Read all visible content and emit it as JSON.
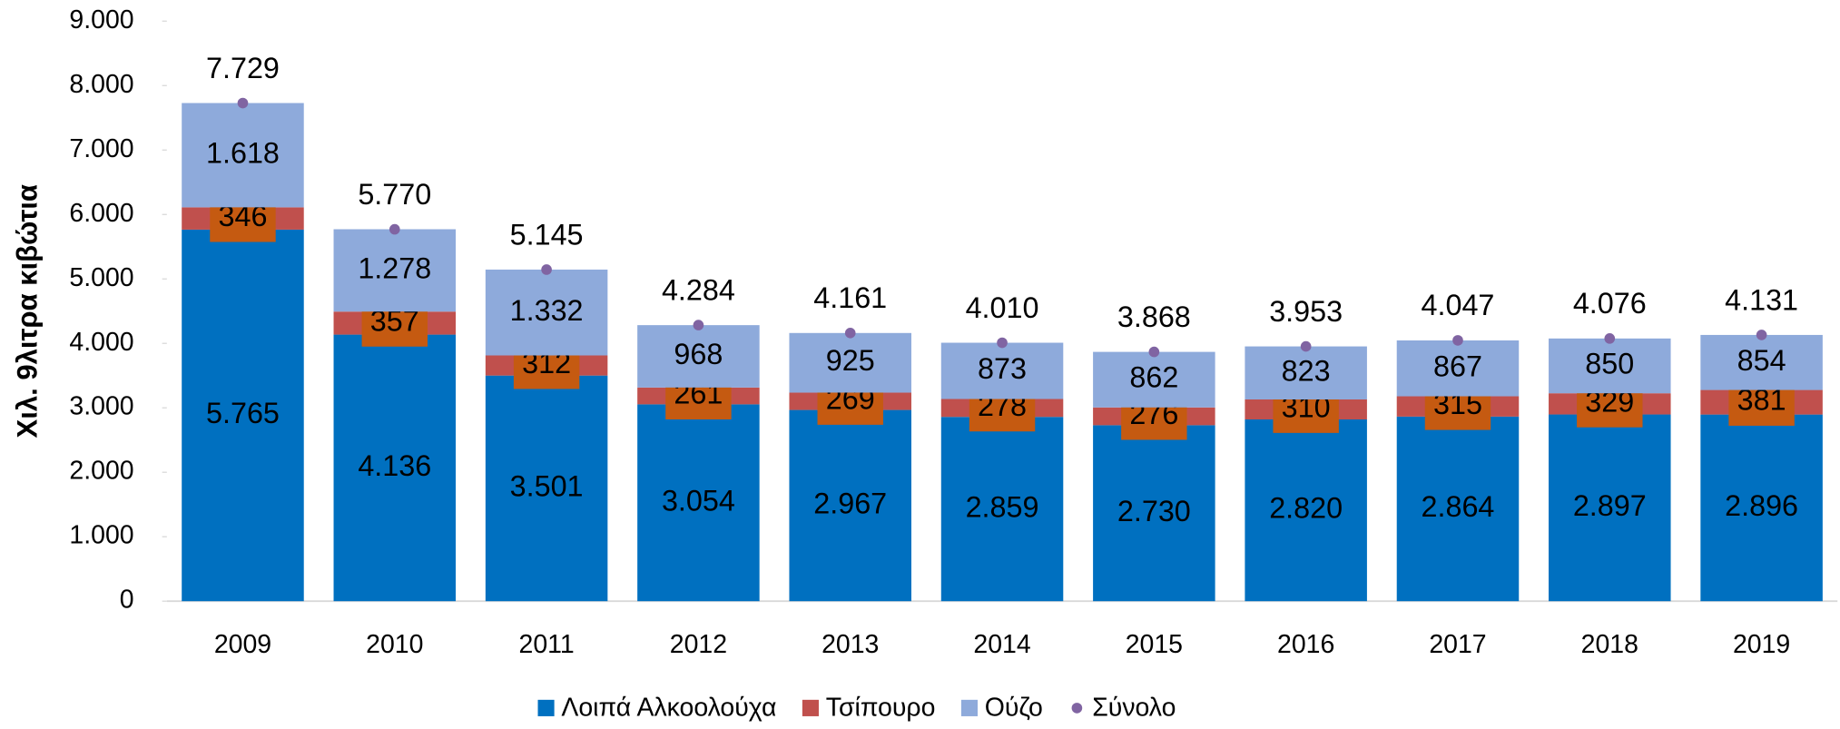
{
  "chart_data": {
    "type": "bar",
    "stacked": true,
    "y_label": "Χιλ. 9λιτρα κιβώτια",
    "categories": [
      "2009",
      "2010",
      "2011",
      "2012",
      "2013",
      "2014",
      "2015",
      "2016",
      "2017",
      "2018",
      "2019"
    ],
    "series": [
      {
        "name": "Λοιπά Αλκοολούχα",
        "color": "#0070c0",
        "values": [
          5765,
          4136,
          3501,
          3054,
          2967,
          2859,
          2730,
          2820,
          2864,
          2897,
          2896
        ],
        "value_labels": [
          "5.765",
          "4.136",
          "3.501",
          "3.054",
          "2.967",
          "2.859",
          "2.730",
          "2.820",
          "2.864",
          "2.897",
          "2.896"
        ]
      },
      {
        "name": "Τσίπουρο",
        "color": "#c0504d",
        "label_box": "#c55a11",
        "values": [
          346,
          357,
          312,
          261,
          269,
          278,
          276,
          310,
          315,
          329,
          381
        ]
      },
      {
        "name": "Ούζο",
        "color": "#8eaadb",
        "values": [
          1618,
          1278,
          1332,
          968,
          925,
          873,
          862,
          823,
          867,
          850,
          854
        ],
        "value_labels": [
          "1.618",
          "1.278",
          "1.332",
          "968",
          "925",
          "873",
          "862",
          "823",
          "867",
          "850",
          "854"
        ]
      },
      {
        "name": "Σύνολο",
        "type": "dot",
        "color": "#8064a2",
        "values": [
          7729,
          5770,
          5145,
          4284,
          4161,
          4010,
          3868,
          3953,
          4047,
          4076,
          4131
        ],
        "value_labels": [
          "7.729",
          "5.770",
          "5.145",
          "4.284",
          "4.161",
          "4.010",
          "3.868",
          "3.953",
          "4.047",
          "4.076",
          "4.131"
        ]
      }
    ],
    "ylim": [
      0,
      9000
    ],
    "yticks": [
      0,
      {
        "value": 1000,
        "label": "1.000"
      },
      {
        "value": 2000,
        "label": "2.000"
      },
      {
        "value": 3000,
        "label": "3.000"
      },
      {
        "value": 4000,
        "label": "4.000"
      },
      {
        "value": 5000,
        "label": "5.000"
      },
      {
        "value": 6000,
        "label": "6.000"
      },
      {
        "value": 7000,
        "label": "7.000"
      },
      {
        "value": 8000,
        "label": "8.000"
      },
      {
        "value": 9000,
        "label": "9.000"
      }
    ],
    "legend": "bottom"
  }
}
